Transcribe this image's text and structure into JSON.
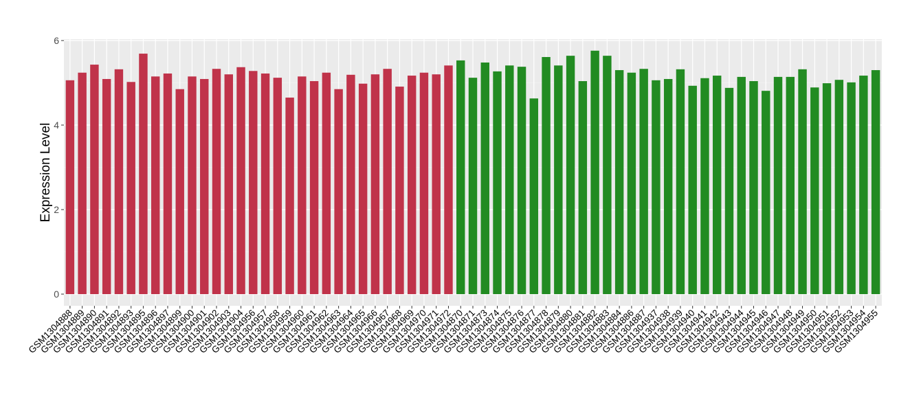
{
  "chart_data": {
    "type": "bar",
    "title": "",
    "xlabel": "",
    "ylabel": "Expression Level",
    "ylim": [
      0,
      6
    ],
    "yticks": [
      0,
      2,
      4,
      6
    ],
    "grid": true,
    "legend": "none",
    "colors": {
      "group1": "#C0334A",
      "group2": "#228B22",
      "panel": "#EBEBEB",
      "grid": "#FFFFFF"
    },
    "categories": [
      "GSM1304888",
      "GSM1304889",
      "GSM1304890",
      "GSM1304891",
      "GSM1304892",
      "GSM1304893",
      "GSM1304895",
      "GSM1304896",
      "GSM1304897",
      "GSM1304899",
      "GSM1304900",
      "GSM1304901",
      "GSM1304902",
      "GSM1304903",
      "GSM1304904",
      "GSM1304956",
      "GSM1304957",
      "GSM1304958",
      "GSM1304959",
      "GSM1304960",
      "GSM1304961",
      "GSM1304962",
      "GSM1304963",
      "GSM1304964",
      "GSM1304965",
      "GSM1304966",
      "GSM1304967",
      "GSM1304968",
      "GSM1304969",
      "GSM1304970",
      "GSM1304971",
      "GSM1304972",
      "GSM1304870",
      "GSM1304871",
      "GSM1304873",
      "GSM1304874",
      "GSM1304875",
      "GSM1304876",
      "GSM1304877",
      "GSM1304878",
      "GSM1304879",
      "GSM1304880",
      "GSM1304881",
      "GSM1304882",
      "GSM1304883",
      "GSM1304884",
      "GSM1304886",
      "GSM1304887",
      "GSM1304937",
      "GSM1304938",
      "GSM1304939",
      "GSM1304940",
      "GSM1304941",
      "GSM1304942",
      "GSM1304943",
      "GSM1304944",
      "GSM1304945",
      "GSM1304946",
      "GSM1304947",
      "GSM1304948",
      "GSM1304949",
      "GSM1304950",
      "GSM1304951",
      "GSM1304952",
      "GSM1304953",
      "GSM1304954",
      "GSM1304955"
    ],
    "values": [
      5.06,
      5.24,
      5.43,
      5.09,
      5.32,
      5.02,
      5.69,
      5.15,
      5.22,
      4.85,
      5.15,
      5.09,
      5.33,
      5.2,
      5.37,
      5.28,
      5.22,
      5.12,
      4.65,
      5.15,
      5.04,
      5.24,
      4.85,
      5.19,
      4.98,
      5.2,
      5.33,
      4.91,
      5.17,
      5.24,
      5.2,
      5.41,
      5.53,
      5.12,
      5.48,
      5.27,
      5.41,
      5.38,
      4.63,
      5.61,
      5.41,
      5.64,
      5.04,
      5.76,
      5.64,
      5.3,
      5.24,
      5.33,
      5.06,
      5.09,
      5.32,
      4.93,
      5.11,
      5.17,
      4.88,
      5.14,
      5.04,
      4.81,
      5.14,
      5.14,
      5.32,
      4.89,
      4.99,
      5.07,
      5.01,
      5.17,
      5.3
    ],
    "groups": [
      "group1",
      "group1",
      "group1",
      "group1",
      "group1",
      "group1",
      "group1",
      "group1",
      "group1",
      "group1",
      "group1",
      "group1",
      "group1",
      "group1",
      "group1",
      "group1",
      "group1",
      "group1",
      "group1",
      "group1",
      "group1",
      "group1",
      "group1",
      "group1",
      "group1",
      "group1",
      "group1",
      "group1",
      "group1",
      "group1",
      "group1",
      "group1",
      "group2",
      "group2",
      "group2",
      "group2",
      "group2",
      "group2",
      "group2",
      "group2",
      "group2",
      "group2",
      "group2",
      "group2",
      "group2",
      "group2",
      "group2",
      "group2",
      "group2",
      "group2",
      "group2",
      "group2",
      "group2",
      "group2",
      "group2",
      "group2",
      "group2",
      "group2",
      "group2",
      "group2",
      "group2",
      "group2",
      "group2",
      "group2",
      "group2",
      "group2",
      "group2"
    ]
  }
}
